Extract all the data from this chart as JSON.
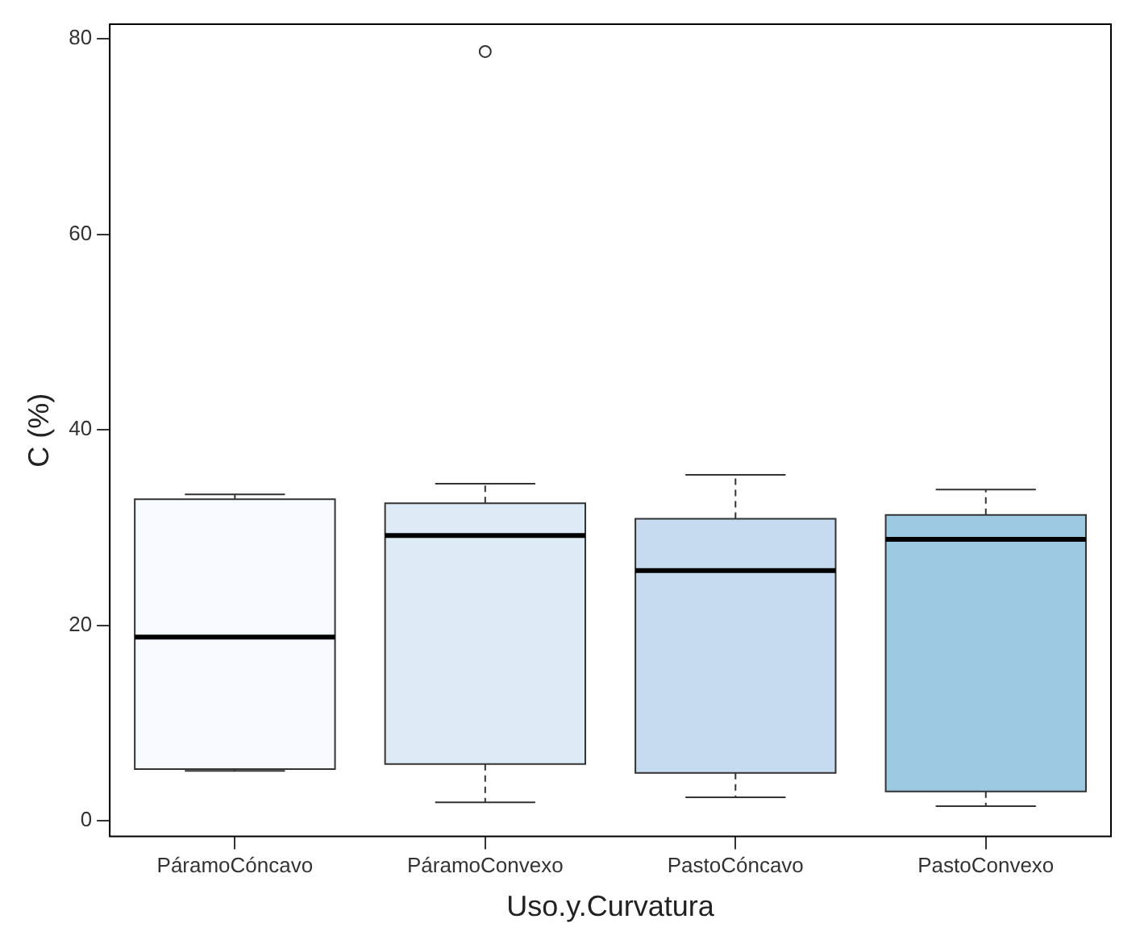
{
  "chart_data": {
    "type": "box",
    "xlabel": "Uso.y.Curvatura",
    "ylabel": "C (%)",
    "categories": [
      "PáramoCóncavo",
      "PáramoConvexo",
      "PastoCóncavo",
      "PastoConvexo"
    ],
    "colors": [
      "#f7fbff",
      "#deebf7",
      "#c6dbef",
      "#9ecae1"
    ],
    "boxes": [
      {
        "low": 5.1,
        "q1": 5.3,
        "median": 18.8,
        "q3": 32.9,
        "high": 33.4
      },
      {
        "low": 1.9,
        "q1": 5.8,
        "median": 29.2,
        "q3": 32.5,
        "high": 34.5,
        "outliers": [
          78.7
        ]
      },
      {
        "low": 2.4,
        "q1": 4.9,
        "median": 25.6,
        "q3": 30.9,
        "high": 35.4
      },
      {
        "low": 1.5,
        "q1": 3.0,
        "median": 28.8,
        "q3": 31.3,
        "high": 33.9
      }
    ],
    "ylim": [
      -1.6,
      81.5
    ],
    "yticks": [
      0,
      20,
      40,
      60,
      80
    ],
    "grid": false,
    "legend": false
  }
}
